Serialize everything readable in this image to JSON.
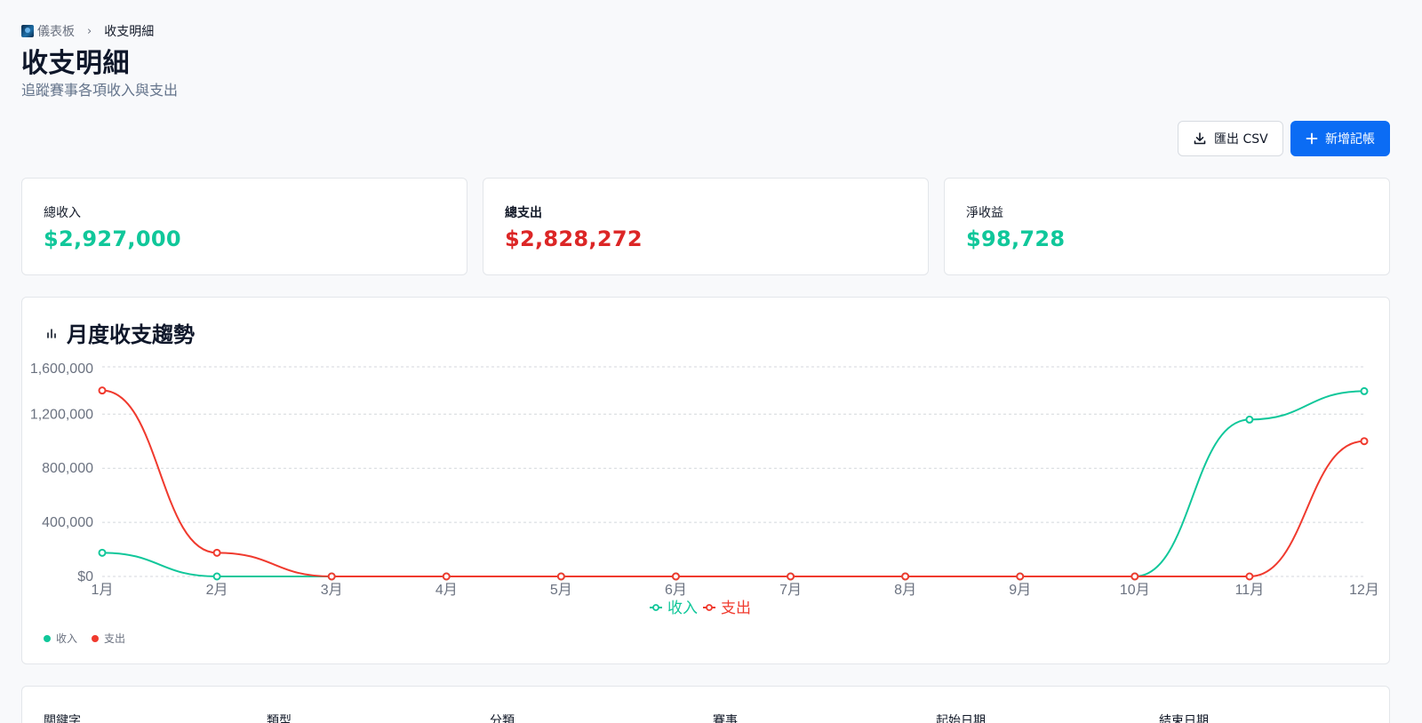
{
  "breadcrumb": {
    "root": "儀表板",
    "current": "收支明細"
  },
  "page": {
    "title": "收支明細",
    "subtitle": "追蹤賽事各項收入與支出"
  },
  "actions": {
    "export_label": "匯出 CSV",
    "add_label": "新增記帳"
  },
  "stats": [
    {
      "label": "總收入",
      "value": "$2,927,000",
      "color": "#10c79a"
    },
    {
      "label": "總支出",
      "value": "$2,828,272",
      "color": "#dc2626"
    },
    {
      "label": "淨收益",
      "value": "$98,728",
      "color": "#10c79a"
    }
  ],
  "chart": {
    "title": "月度收支趨勢",
    "legend_bottom": [
      {
        "label": "收入",
        "color": "#10c79a"
      },
      {
        "label": "支出",
        "color": "#f03a2e"
      }
    ]
  },
  "chart_data": {
    "type": "line",
    "title": "月度收支趨勢",
    "categories": [
      "1月",
      "2月",
      "3月",
      "4月",
      "5月",
      "6月",
      "7月",
      "8月",
      "9月",
      "10月",
      "11月",
      "12月"
    ],
    "series": [
      {
        "name": "收入",
        "color": "#10c79a",
        "values": [
          175000,
          0,
          0,
          0,
          0,
          0,
          0,
          0,
          0,
          0,
          1160000,
          1370000
        ]
      },
      {
        "name": "支出",
        "color": "#f03a2e",
        "values": [
          1375000,
          175000,
          0,
          0,
          0,
          0,
          0,
          0,
          0,
          0,
          0,
          1000000
        ]
      }
    ],
    "yticks": [
      "$0",
      "400,000",
      "800,000",
      "1,200,000",
      "1,600,000"
    ],
    "ylim": [
      0,
      1550000
    ],
    "grid": true,
    "legend_position": "bottom"
  },
  "filters": {
    "labels": [
      "關鍵字",
      "類型",
      "分類",
      "賽事",
      "起始日期",
      "結束日期"
    ]
  }
}
